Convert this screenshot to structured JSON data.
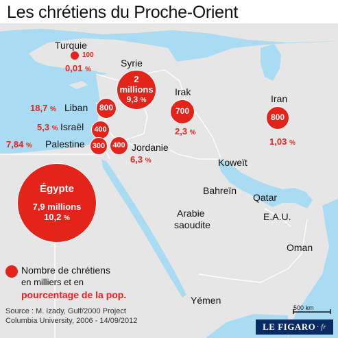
{
  "title": "Les chrétiens du Proche-Orient",
  "countries": [
    {
      "id": "turquie",
      "name": "Turquie",
      "value": "100",
      "pct": "0,01",
      "pct_unit": "%"
    },
    {
      "id": "syrie",
      "name": "Syrie",
      "value_line1": "2",
      "value_line2": "millions",
      "pct": "9,3",
      "pct_unit": "%"
    },
    {
      "id": "liban",
      "name": "Liban",
      "value": "800",
      "pct": "18,7",
      "pct_unit": "%"
    },
    {
      "id": "israel",
      "name": "Israël",
      "value": "400",
      "pct": "5,3",
      "pct_unit": "%"
    },
    {
      "id": "palestine",
      "name": "Palestine",
      "value": "300",
      "pct": "7,84",
      "pct_unit": "%"
    },
    {
      "id": "jordanie",
      "name": "Jordanie",
      "value": "400",
      "pct": "6,3",
      "pct_unit": "%"
    },
    {
      "id": "irak",
      "name": "Irak",
      "value": "700",
      "pct": "2,3",
      "pct_unit": "%"
    },
    {
      "id": "iran",
      "name": "Iran",
      "value": "800",
      "pct": "1,03",
      "pct_unit": "%"
    },
    {
      "id": "egypte",
      "name": "Égypte",
      "value": "7,9 millions",
      "pct": "10,2",
      "pct_unit": "%"
    }
  ],
  "other_labels": {
    "koweit": "Koweït",
    "bahrein": "Bahreïn",
    "qatar": "Qatar",
    "arabie_line1": "Arabie",
    "arabie_line2": "saoudite",
    "eau": "E.A.U.",
    "oman": "Oman",
    "yemen": "Yémen"
  },
  "legend": {
    "line1": "Nombre de chrétiens",
    "line2": "en milliers et en",
    "line3": "pourcentage de la pop."
  },
  "source": {
    "line1": "Source : M. Izady, Gulf/2000 Project",
    "line2": "Columbia University, 2006 - 14/09/2012"
  },
  "scale_label": "500 km",
  "logo": {
    "main": "LE FIGARO",
    "suffix": "· fr"
  },
  "colors": {
    "accent": "#e4231b",
    "sea": "#a9dcf2",
    "land": "#e6e6e6",
    "border": "#ffffff",
    "logo_bg": "#0a2a63"
  }
}
